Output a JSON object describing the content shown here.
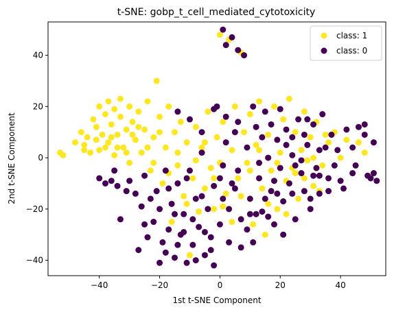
{
  "chart_data": {
    "type": "scatter",
    "title": "t-SNE: gobp_t_cell_mediated_cytotoxicity",
    "xlabel": "1st t-SNE Component",
    "ylabel": "2nd t-SNE Component",
    "xlim": [
      -57,
      55
    ],
    "ylim": [
      -46,
      53
    ],
    "xticks": [
      -40,
      -20,
      0,
      20,
      40
    ],
    "yticks": [
      -40,
      -20,
      0,
      20,
      40
    ],
    "xtick_labels": [
      "−40",
      "−20",
      "0",
      "20",
      "40"
    ],
    "ytick_labels": [
      "−40",
      "−20",
      "0",
      "20",
      "40"
    ],
    "grid": false,
    "legend_position": "top-right",
    "series": [
      {
        "name": "class: 1",
        "color": "#fde725",
        "points": [
          [
            -53,
            2
          ],
          [
            -52,
            1
          ],
          [
            -48,
            6
          ],
          [
            -46,
            10
          ],
          [
            -45,
            5
          ],
          [
            -44,
            8
          ],
          [
            -43,
            2
          ],
          [
            -42,
            15
          ],
          [
            -41,
            12
          ],
          [
            -40,
            20
          ],
          [
            -40,
            3
          ],
          [
            -39,
            9
          ],
          [
            -38,
            17
          ],
          [
            -37,
            22
          ],
          [
            -37,
            6
          ],
          [
            -36,
            13
          ],
          [
            -35,
            19
          ],
          [
            -35,
            1
          ],
          [
            -34,
            9
          ],
          [
            -33,
            23
          ],
          [
            -33,
            16
          ],
          [
            -32,
            4
          ],
          [
            -31,
            11
          ],
          [
            -30,
            20
          ],
          [
            -30,
            -2
          ],
          [
            -29,
            14
          ],
          [
            -28,
            7
          ],
          [
            -27,
            18
          ],
          [
            -26,
            2
          ],
          [
            -25,
            11
          ],
          [
            -24,
            22
          ],
          [
            -23,
            -5
          ],
          [
            -22,
            8
          ],
          [
            -21,
            30
          ],
          [
            -20,
            16
          ],
          [
            -19,
            -10
          ],
          [
            -18,
            4
          ],
          [
            -17,
            20
          ],
          [
            -16,
            -25
          ],
          [
            -15,
            10
          ],
          [
            -14,
            -3
          ],
          [
            -13,
            14
          ],
          [
            -12,
            -15
          ],
          [
            -11,
            6
          ],
          [
            -10,
            -38
          ],
          [
            -9,
            -8
          ],
          [
            -8,
            12
          ],
          [
            -7,
            -21
          ],
          [
            -6,
            4
          ],
          [
            -5,
            -12
          ],
          [
            -4,
            18
          ],
          [
            -3,
            -4
          ],
          [
            -2,
            -20
          ],
          [
            -1,
            8
          ],
          [
            0,
            48
          ],
          [
            0,
            -2
          ],
          [
            1,
            14
          ],
          [
            2,
            -14
          ],
          [
            3,
            46
          ],
          [
            4,
            3
          ],
          [
            5,
            20
          ],
          [
            6,
            -8
          ],
          [
            7,
            41
          ],
          [
            8,
            10
          ],
          [
            9,
            -2
          ],
          [
            10,
            17
          ],
          [
            11,
            -26
          ],
          [
            12,
            5
          ],
          [
            13,
            22
          ],
          [
            14,
            -12
          ],
          [
            15,
            -30
          ],
          [
            16,
            9
          ],
          [
            17,
            -5
          ],
          [
            18,
            20
          ],
          [
            19,
            -20
          ],
          [
            20,
            2
          ],
          [
            21,
            15
          ],
          [
            22,
            -9
          ],
          [
            23,
            23
          ],
          [
            24,
            -4
          ],
          [
            25,
            10
          ],
          [
            26,
            -16
          ],
          [
            27,
            3
          ],
          [
            28,
            18
          ],
          [
            29,
            -1
          ],
          [
            30,
            8
          ],
          [
            31,
            -11
          ],
          [
            32,
            14
          ],
          [
            34,
            -3
          ],
          [
            36,
            6
          ],
          [
            38,
            10
          ],
          [
            40,
            0
          ],
          [
            42,
            7
          ],
          [
            46,
            6
          ],
          [
            48,
            2
          ],
          [
            -45,
            3
          ],
          [
            -41,
            7
          ],
          [
            -38,
            4
          ],
          [
            -36,
            8
          ],
          [
            -34,
            4
          ],
          [
            -31,
            2
          ],
          [
            -29,
            9
          ],
          [
            -27,
            12
          ],
          [
            -24,
            4
          ],
          [
            -22,
            -2
          ],
          [
            -20,
            10
          ],
          [
            -17,
            -6
          ],
          [
            -14,
            2
          ],
          [
            -11,
            -18
          ],
          [
            -8,
            -1
          ],
          [
            -5,
            6
          ],
          [
            -2,
            -8
          ],
          [
            1,
            -19
          ],
          [
            4,
            -25
          ],
          [
            7,
            -15
          ],
          [
            10,
            -5
          ],
          [
            13,
            3
          ],
          [
            16,
            -18
          ],
          [
            19,
            -2
          ],
          [
            22,
            -22
          ],
          [
            25,
            -6
          ],
          [
            28,
            -8
          ],
          [
            31,
            0
          ],
          [
            33,
            -13
          ],
          [
            35,
            9
          ]
        ]
      },
      {
        "name": "class: 0",
        "color": "#440154",
        "points": [
          [
            -40,
            -8
          ],
          [
            -38,
            -10
          ],
          [
            -36,
            -9
          ],
          [
            -34,
            -11
          ],
          [
            -33,
            -24
          ],
          [
            -30,
            -9
          ],
          [
            -28,
            -14
          ],
          [
            -26,
            -19
          ],
          [
            -25,
            -7
          ],
          [
            -24,
            -31
          ],
          [
            -22,
            -25
          ],
          [
            -21,
            -13
          ],
          [
            -20,
            -41
          ],
          [
            -19,
            -33
          ],
          [
            -18,
            -5
          ],
          [
            -17,
            -28
          ],
          [
            -16,
            -18
          ],
          [
            -15,
            -39
          ],
          [
            -14,
            -10
          ],
          [
            -13,
            -30
          ],
          [
            -12,
            -22
          ],
          [
            -11,
            -41
          ],
          [
            -10,
            -5
          ],
          [
            -9,
            -34
          ],
          [
            -8,
            -16
          ],
          [
            -7,
            -27
          ],
          [
            -6,
            2
          ],
          [
            -5,
            -38
          ],
          [
            -4,
            -20
          ],
          [
            -3,
            -31
          ],
          [
            -2,
            -11
          ],
          [
            -1,
            20
          ],
          [
            0,
            -26
          ],
          [
            1,
            50
          ],
          [
            1,
            -16
          ],
          [
            2,
            44
          ],
          [
            2,
            6
          ],
          [
            3,
            -33
          ],
          [
            4,
            47
          ],
          [
            5,
            -12
          ],
          [
            6,
            42
          ],
          [
            6,
            14
          ],
          [
            7,
            -24
          ],
          [
            8,
            40
          ],
          [
            9,
            4
          ],
          [
            10,
            -16
          ],
          [
            11,
            -33
          ],
          [
            12,
            12
          ],
          [
            13,
            -8
          ],
          [
            14,
            -21
          ],
          [
            15,
            18
          ],
          [
            16,
            0
          ],
          [
            17,
            -13
          ],
          [
            18,
            -26
          ],
          [
            19,
            7
          ],
          [
            20,
            -4
          ],
          [
            21,
            -17
          ],
          [
            22,
            11
          ],
          [
            23,
            -10
          ],
          [
            24,
            1
          ],
          [
            25,
            -24
          ],
          [
            26,
            15
          ],
          [
            27,
            -6
          ],
          [
            28,
            -13
          ],
          [
            29,
            5
          ],
          [
            30,
            -20
          ],
          [
            31,
            13
          ],
          [
            32,
            -4
          ],
          [
            33,
            -14
          ],
          [
            34,
            17
          ],
          [
            35,
            4
          ],
          [
            36,
            -8
          ],
          [
            37,
            9
          ],
          [
            38,
            -3
          ],
          [
            40,
            -9
          ],
          [
            42,
            11
          ],
          [
            44,
            4
          ],
          [
            45,
            -3
          ],
          [
            46,
            12
          ],
          [
            48,
            9
          ],
          [
            49,
            -7
          ],
          [
            50,
            -8
          ],
          [
            51,
            -6
          ],
          [
            52,
            -9
          ],
          [
            48,
            13
          ],
          [
            51,
            6
          ],
          [
            44,
            -6
          ],
          [
            -27,
            -36
          ],
          [
            -25,
            -26
          ],
          [
            -23,
            -16
          ],
          [
            -18,
            -37
          ],
          [
            -15,
            -22
          ],
          [
            -12,
            -29
          ],
          [
            -9,
            -24
          ],
          [
            -6,
            -15
          ],
          [
            -3,
            -36
          ],
          [
            0,
            -8
          ],
          [
            3,
            -20
          ],
          [
            6,
            -5
          ],
          [
            9,
            -28
          ],
          [
            12,
            -22
          ],
          [
            15,
            -16
          ],
          [
            18,
            -9
          ],
          [
            21,
            -30
          ],
          [
            24,
            -14
          ],
          [
            27,
            -1
          ],
          [
            30,
            -16
          ],
          [
            33,
            -7
          ],
          [
            36,
            -13
          ],
          [
            39,
            3
          ],
          [
            41,
            -12
          ],
          [
            -20,
            -20
          ],
          [
            -17,
            -12
          ],
          [
            -14,
            -34
          ],
          [
            -11,
            -8
          ],
          [
            -8,
            -40
          ],
          [
            -5,
            -29
          ],
          [
            -2,
            -42
          ],
          [
            1,
            -3
          ],
          [
            4,
            -10
          ],
          [
            7,
            -35
          ],
          [
            10,
            -22
          ],
          [
            13,
            -2
          ],
          [
            16,
            -23
          ],
          [
            19,
            -14
          ],
          [
            22,
            5
          ],
          [
            25,
            -3
          ],
          [
            28,
            9
          ],
          [
            31,
            -7
          ],
          [
            -14,
            18
          ],
          [
            -10,
            15
          ],
          [
            -6,
            10
          ],
          [
            -2,
            19
          ],
          [
            2,
            16
          ],
          [
            5,
            10
          ],
          [
            11,
            20
          ],
          [
            14,
            8
          ],
          [
            17,
            13
          ],
          [
            20,
            19
          ],
          [
            24,
            8
          ],
          [
            29,
            15
          ],
          [
            33,
            3
          ],
          [
            -31,
            -13
          ],
          [
            -35,
            -5
          ]
        ]
      }
    ]
  }
}
